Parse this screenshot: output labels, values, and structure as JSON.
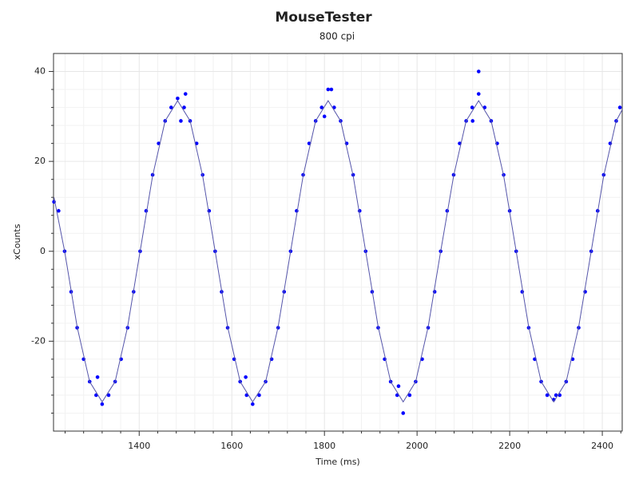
{
  "chart_data": {
    "type": "scatter",
    "title": "MouseTester",
    "subtitle": "800 cpi",
    "x_label": "Time (ms)",
    "y_label": "xCounts",
    "xlim": [
      1215,
      2443
    ],
    "ylim": [
      -40,
      44
    ],
    "xticks": [
      1400,
      1600,
      1800,
      2000,
      2200,
      2400
    ],
    "yticks": [
      -20,
      0,
      20,
      40
    ],
    "xminorticks": [
      1240,
      1280,
      1320,
      1360,
      1440,
      1480,
      1520,
      1560,
      1640,
      1680,
      1720,
      1760,
      1840,
      1880,
      1920,
      1960,
      2040,
      2080,
      2120,
      2160,
      2240,
      2280,
      2320,
      2360,
      2440
    ],
    "yminorticks": [
      -36,
      -32,
      -28,
      -24,
      -16,
      -12,
      -8,
      -4,
      4,
      8,
      12,
      16,
      24,
      28,
      32,
      36
    ],
    "grid": true,
    "series": [
      {
        "type": "scatter",
        "color": "#0000ff",
        "x": [
          1216,
          1226,
          1239,
          1253,
          1266,
          1280,
          1293,
          1307,
          1320,
          1334,
          1348,
          1361,
          1375,
          1388,
          1402,
          1415,
          1429,
          1442,
          1456,
          1469,
          1483,
          1497,
          1510,
          1524,
          1537,
          1551,
          1564,
          1578,
          1591,
          1605,
          1618,
          1632,
          1645,
          1659,
          1673,
          1686,
          1700,
          1713,
          1727,
          1740,
          1754,
          1767,
          1781,
          1794,
          1808,
          1821,
          1835,
          1848,
          1862,
          1876,
          1889,
          1903,
          1916,
          1930,
          1943,
          1957,
          1970,
          1984,
          1997,
          2011,
          2024,
          2038,
          2051,
          2065,
          2079,
          2092,
          2106,
          2119,
          2133,
          2146,
          2160,
          2173,
          2187,
          2200,
          2214,
          2227,
          2241,
          2254,
          2268,
          2281,
          2295,
          2308,
          2322,
          2336,
          2349,
          2363,
          2376,
          2390,
          2403,
          2417,
          2430,
          2438,
          2133,
          1310,
          1490,
          1800,
          2120,
          1630,
          1960,
          2300,
          1500,
          1815
        ],
        "values": [
          11,
          9,
          0,
          -9,
          -17,
          -24,
          -29,
          -32,
          -34,
          -32,
          -29,
          -24,
          -17,
          -9,
          0,
          9,
          17,
          24,
          29,
          32,
          34,
          32,
          29,
          24,
          17,
          9,
          0,
          -9,
          -17,
          -24,
          -29,
          -32,
          -34,
          -32,
          -29,
          -24,
          -17,
          -9,
          0,
          9,
          17,
          24,
          29,
          32,
          36,
          32,
          29,
          24,
          17,
          9,
          0,
          -9,
          -17,
          -24,
          -29,
          -32,
          -36,
          -32,
          -29,
          -24,
          -17,
          -9,
          0,
          9,
          17,
          24,
          29,
          32,
          35,
          32,
          29,
          24,
          17,
          9,
          0,
          -9,
          -17,
          -24,
          -29,
          -32,
          -33,
          -32,
          -29,
          -24,
          -17,
          -9,
          0,
          9,
          17,
          24,
          29,
          32,
          40,
          -28,
          29,
          30,
          29,
          -28,
          -30,
          -32,
          35,
          36
        ]
      },
      {
        "type": "line",
        "color": "#5555aa",
        "x": [
          1216,
          1239,
          1266,
          1293,
          1320,
          1348,
          1375,
          1402,
          1429,
          1456,
          1483,
          1510,
          1537,
          1564,
          1591,
          1618,
          1645,
          1673,
          1700,
          1727,
          1754,
          1781,
          1808,
          1835,
          1862,
          1889,
          1916,
          1943,
          1970,
          1997,
          2024,
          2051,
          2079,
          2106,
          2133,
          2160,
          2187,
          2214,
          2241,
          2268,
          2295,
          2322,
          2349,
          2376,
          2403,
          2430,
          2443
        ],
        "values": [
          12,
          0,
          -16.8,
          -29,
          -33.5,
          -29,
          -16.8,
          0,
          16.8,
          29,
          33.5,
          29,
          16.8,
          0,
          -16.8,
          -29,
          -33.5,
          -29,
          -16.8,
          0,
          16.8,
          29,
          33.5,
          29,
          16.8,
          0,
          -16.8,
          -29,
          -33.5,
          -29,
          -16.8,
          0,
          16.8,
          29,
          33.5,
          29,
          16.8,
          0,
          -16.8,
          -29,
          -33.5,
          -29,
          -16.8,
          0,
          16.8,
          29,
          31.5
        ]
      }
    ]
  }
}
